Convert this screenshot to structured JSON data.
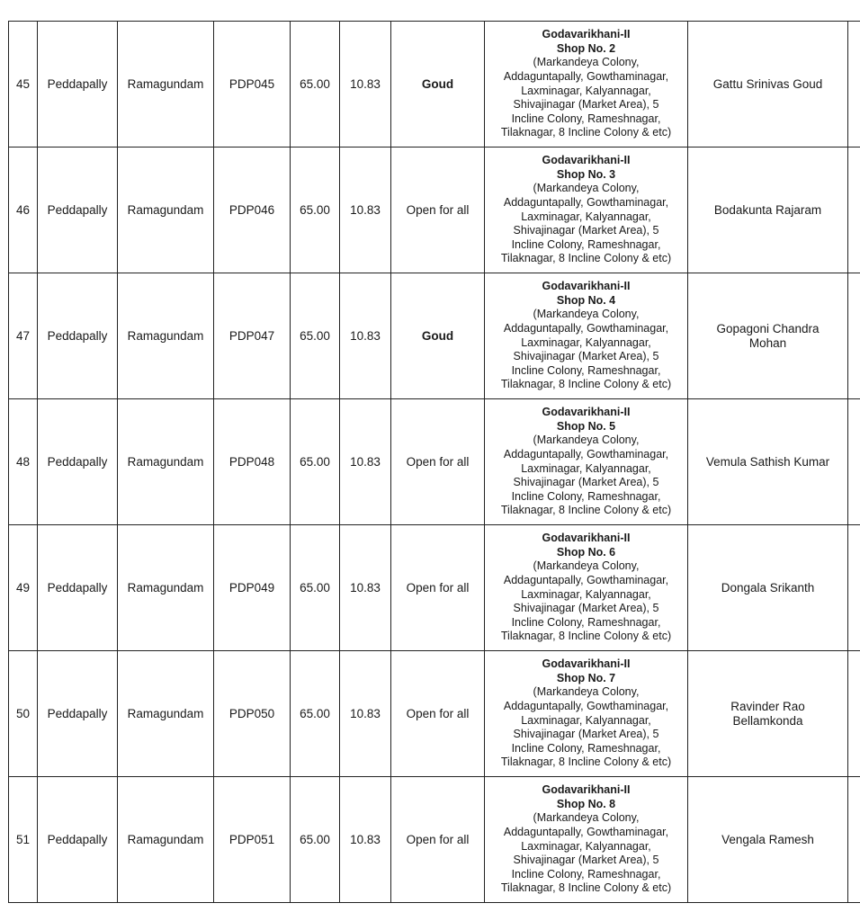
{
  "rows": [
    {
      "sno": "45",
      "district": "Peddapally",
      "excise_station": "Ramagundam",
      "code": "PDP045",
      "fee": "65.00",
      "amount": "10.83",
      "category": "Goud",
      "category_bold": true,
      "location_title": "Godavarikhani-II",
      "shop": "Shop No. 2",
      "location_lines": [
        "(Markandeya Colony,",
        "Addaguntapally, Gowthaminagar,",
        "Laxminagar, Kalyannagar,",
        "Shivajinagar (Market Area), 5",
        "Incline Colony, Rameshnagar,",
        "Tilaknagar, 8 Incline Colony & etc)"
      ],
      "licensee": "Gattu Srinivas Goud"
    },
    {
      "sno": "46",
      "district": "Peddapally",
      "excise_station": "Ramagundam",
      "code": "PDP046",
      "fee": "65.00",
      "amount": "10.83",
      "category": "Open for all",
      "category_bold": false,
      "location_title": "Godavarikhani-II",
      "shop": "Shop No. 3",
      "location_lines": [
        "(Markandeya Colony,",
        "Addaguntapally, Gowthaminagar,",
        "Laxminagar, Kalyannagar,",
        "Shivajinagar (Market Area), 5",
        "Incline Colony, Rameshnagar,",
        "Tilaknagar, 8 Incline Colony & etc)"
      ],
      "licensee": "Bodakunta Rajaram"
    },
    {
      "sno": "47",
      "district": "Peddapally",
      "excise_station": "Ramagundam",
      "code": "PDP047",
      "fee": "65.00",
      "amount": "10.83",
      "category": "Goud",
      "category_bold": true,
      "location_title": "Godavarikhani-II",
      "shop": "Shop No. 4",
      "location_lines": [
        "(Markandeya Colony,",
        "Addaguntapally, Gowthaminagar,",
        "Laxminagar, Kalyannagar,",
        "Shivajinagar (Market Area), 5",
        "Incline Colony, Rameshnagar,",
        "Tilaknagar, 8 Incline Colony & etc)"
      ],
      "licensee": "Gopagoni Chandra Mohan"
    },
    {
      "sno": "48",
      "district": "Peddapally",
      "excise_station": "Ramagundam",
      "code": "PDP048",
      "fee": "65.00",
      "amount": "10.83",
      "category": "Open for all",
      "category_bold": false,
      "location_title": "Godavarikhani-II",
      "shop": "Shop No. 5",
      "location_lines": [
        "(Markandeya Colony,",
        "Addaguntapally, Gowthaminagar,",
        "Laxminagar, Kalyannagar,",
        "Shivajinagar (Market Area), 5",
        "Incline Colony, Rameshnagar,",
        "Tilaknagar, 8 Incline Colony & etc)"
      ],
      "licensee": "Vemula Sathish Kumar"
    },
    {
      "sno": "49",
      "district": "Peddapally",
      "excise_station": "Ramagundam",
      "code": "PDP049",
      "fee": "65.00",
      "amount": "10.83",
      "category": "Open for all",
      "category_bold": false,
      "location_title": "Godavarikhani-II",
      "shop": "Shop No. 6",
      "location_lines": [
        "(Markandeya Colony,",
        "Addaguntapally, Gowthaminagar,",
        "Laxminagar, Kalyannagar,",
        "Shivajinagar (Market Area), 5",
        "Incline Colony, Rameshnagar,",
        "Tilaknagar, 8 Incline Colony & etc)"
      ],
      "licensee": "Dongala Srikanth"
    },
    {
      "sno": "50",
      "district": "Peddapally",
      "excise_station": "Ramagundam",
      "code": "PDP050",
      "fee": "65.00",
      "amount": "10.83",
      "category": "Open for all",
      "category_bold": false,
      "location_title": "Godavarikhani-II",
      "shop": "Shop No. 7",
      "location_lines": [
        "(Markandeya Colony,",
        "Addaguntapally, Gowthaminagar,",
        "Laxminagar, Kalyannagar,",
        "Shivajinagar (Market Area), 5",
        "Incline Colony, Rameshnagar,",
        "Tilaknagar, 8 Incline Colony & etc)"
      ],
      "licensee": "Ravinder Rao Bellamkonda"
    },
    {
      "sno": "51",
      "district": "Peddapally",
      "excise_station": "Ramagundam",
      "code": "PDP051",
      "fee": "65.00",
      "amount": "10.83",
      "category": "Open for all",
      "category_bold": false,
      "location_title": "Godavarikhani-II",
      "shop": "Shop No. 8",
      "location_lines": [
        "(Markandeya Colony,",
        "Addaguntapally, Gowthaminagar,",
        "Laxminagar, Kalyannagar,",
        "Shivajinagar (Market Area), 5",
        "Incline Colony, Rameshnagar,",
        "Tilaknagar, 8 Incline Colony & etc)"
      ],
      "licensee": "Vengala Ramesh"
    }
  ]
}
